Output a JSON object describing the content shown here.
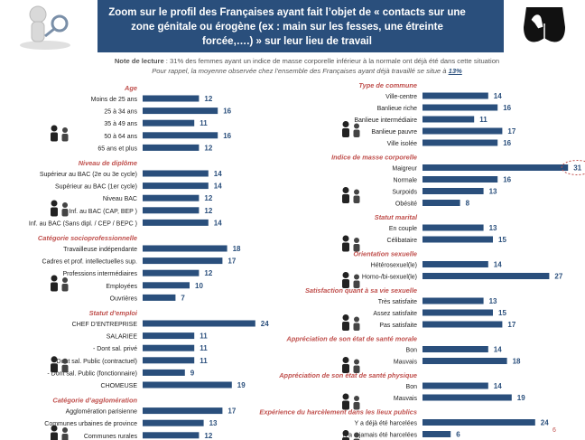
{
  "header": {
    "title": "Zoom sur le profil des Françaises ayant fait l’objet de « contacts sur une zone génitale ou érogène (ex : main sur les fesses, une étreinte forcée,….) » sur leur lieu de travail"
  },
  "note": {
    "label": "Note de lecture",
    "text": " : 31% des femmes ayant un indice de masse corporelle inférieur à la normale ont déjà été dans cette situation"
  },
  "reminder": {
    "text": "Pour rappel, la moyenne observée chez l’ensemble des Françaises ayant déjà travaillé se situe à ",
    "value": "13%"
  },
  "page_number": "6",
  "colors": {
    "header": "#2a4f7c",
    "bar": "#2a4f7c",
    "section_title": "#c0504d",
    "value_text": "#2a4f7c",
    "highlight_circle": "#c0504d"
  },
  "chart_data": {
    "type": "bar",
    "orientation": "horizontal",
    "unit": "%",
    "panels": [
      {
        "column": "left",
        "sections": [
          {
            "title": "Age",
            "icon": "age-people-icon",
            "rows": [
              {
                "label": "Moins de 25 ans",
                "value": 12
              },
              {
                "label": "25 à 34 ans",
                "value": 16
              },
              {
                "label": "35 à 49 ans",
                "value": 11
              },
              {
                "label": "50 à 64 ans",
                "value": 16
              },
              {
                "label": "65 ans et plus",
                "value": 12
              }
            ]
          },
          {
            "title": "Niveau de diplôme",
            "icon": "diploma-icon",
            "rows": [
              {
                "label": "Supérieur au BAC (2e ou 3e cycle)",
                "value": 14
              },
              {
                "label": "Supérieur au BAC  (1er cycle)",
                "value": 14
              },
              {
                "label": "Niveau BAC",
                "value": 12
              },
              {
                "label": "Inf. au BAC (CAP, BEP )",
                "value": 12
              },
              {
                "label": "Inf. au BAC (Sans dipl. / CEP / BEPC )",
                "value": 14
              }
            ]
          },
          {
            "title": "Catégorie socioprofessionnelle",
            "icon": "workers-icon",
            "rows": [
              {
                "label": "Travailleuse indépendante",
                "value": 18
              },
              {
                "label": "Cadres et prof. intellectuelles sup.",
                "value": 17
              },
              {
                "label": "Professions intermédiaires",
                "value": 12
              },
              {
                "label": "Employées",
                "value": 10
              },
              {
                "label": "Ouvrières",
                "value": 7
              }
            ]
          },
          {
            "title": "Statut d’emploi",
            "icon": "org-chart-icon",
            "rows": [
              {
                "label": "CHEF D’ENTREPRISE",
                "value": 24
              },
              {
                "label": "SALARIEE",
                "value": 11
              },
              {
                "label": "- Dont sal. privé",
                "value": 11
              },
              {
                "label": "- Dont sal. Public (contractuel)",
                "value": 11
              },
              {
                "label": "- Dont sal. Public (fonctionnaire)",
                "value": 9
              },
              {
                "label": "CHOMEUSE",
                "value": 19
              }
            ]
          },
          {
            "title": "Catégorie d’agglomération",
            "icon": "city-icon",
            "rows": [
              {
                "label": "Agglomération parisienne",
                "value": 17
              },
              {
                "label": "Communes urbaines de province",
                "value": 13
              },
              {
                "label": "Communes rurales",
                "value": 12
              }
            ]
          }
        ]
      },
      {
        "column": "right",
        "sections": [
          {
            "title": "Type de commune",
            "icon": "buildings-icon",
            "rows": [
              {
                "label": "Ville-centre",
                "value": 14
              },
              {
                "label": "Banlieue riche",
                "value": 16
              },
              {
                "label": "Banlieue intermédiaire",
                "value": 11
              },
              {
                "label": "Banlieue pauvre",
                "value": 17
              },
              {
                "label": "Ville isolée",
                "value": 16
              }
            ]
          },
          {
            "title": "Indice de masse corporelle",
            "icon": "scale-icon",
            "rows": [
              {
                "label": "Maigreur",
                "value": 31,
                "highlight": true
              },
              {
                "label": "Normale",
                "value": 16
              },
              {
                "label": "Surpoids",
                "value": 13
              },
              {
                "label": "Obésité",
                "value": 8
              }
            ]
          },
          {
            "title": "Statut marital",
            "icon": "couple-icon",
            "rows": [
              {
                "label": "En couple",
                "value": 13
              },
              {
                "label": "Célibataire",
                "value": 15
              }
            ]
          },
          {
            "title": "Orientation sexuelle",
            "icon": "gender-symbols-icon",
            "rows": [
              {
                "label": "Hétérosexuel(le)",
                "value": 14
              },
              {
                "label": "Homo-/bi-sexuel(le)",
                "value": 27
              }
            ]
          },
          {
            "title": "Satisfaction quant à sa vie sexuelle",
            "icon": "bed-icon",
            "rows": [
              {
                "label": "Très satisfaite",
                "value": 13
              },
              {
                "label": "Assez satisfaite",
                "value": 15
              },
              {
                "label": "Pas satisfaite",
                "value": 17
              }
            ]
          },
          {
            "title": "Appréciation de son état de santé morale",
            "icon": "head-icon",
            "rows": [
              {
                "label": "Bon",
                "value": 14
              },
              {
                "label": "Mauvais",
                "value": 18
              }
            ]
          },
          {
            "title": "Appréciation de son état de santé physique",
            "icon": "body-icon",
            "rows": [
              {
                "label": "Bon",
                "value": 14
              },
              {
                "label": "Mauvais",
                "value": 19
              }
            ]
          },
          {
            "title": "Expérience du harcèlement dans les lieux publics",
            "icon": "harassment-icon",
            "rows": [
              {
                "label": "Y a déjà été harcelées",
                "value": 24
              },
              {
                "label": "N’a a jamais été harcelées",
                "value": 6
              }
            ]
          }
        ]
      }
    ]
  }
}
